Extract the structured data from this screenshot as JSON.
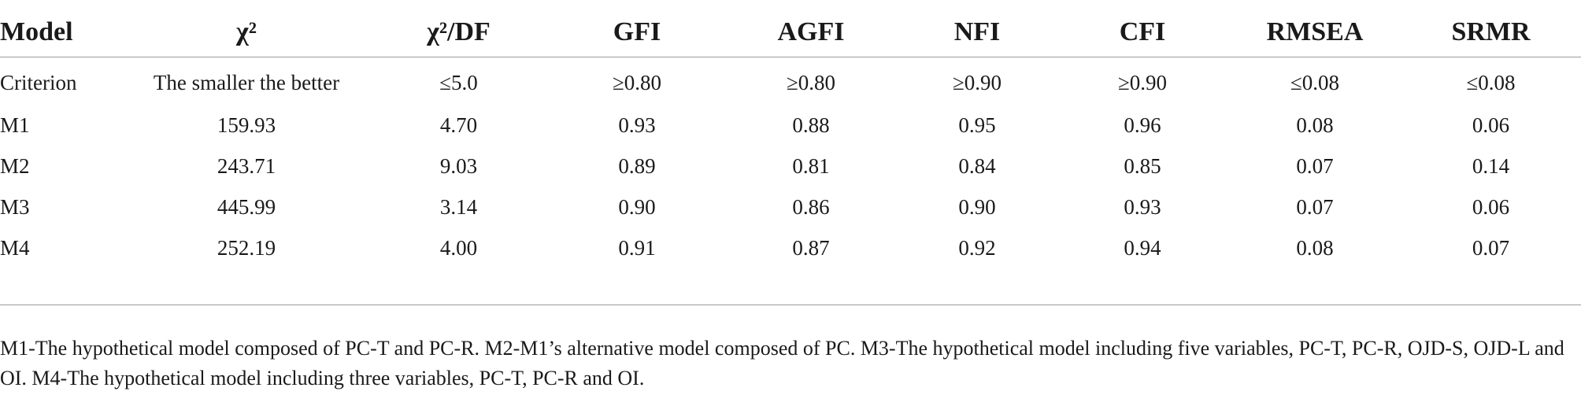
{
  "table": {
    "headers": [
      "Model",
      "χ²",
      "χ²/DF",
      "GFI",
      "AGFI",
      "NFI",
      "CFI",
      "RMSEA",
      "SRMR"
    ],
    "rows": [
      [
        "Criterion",
        "The smaller the better",
        "≤5.0",
        "≥0.80",
        "≥0.80",
        "≥0.90",
        "≥0.90",
        "≤0.08",
        "≤0.08"
      ],
      [
        "M1",
        "159.93",
        "4.70",
        "0.93",
        "0.88",
        "0.95",
        "0.96",
        "0.08",
        "0.06"
      ],
      [
        "M2",
        "243.71",
        "9.03",
        "0.89",
        "0.81",
        "0.84",
        "0.85",
        "0.07",
        "0.14"
      ],
      [
        "M3",
        "445.99",
        "3.14",
        "0.90",
        "0.86",
        "0.90",
        "0.93",
        "0.07",
        "0.06"
      ],
      [
        "M4",
        "252.19",
        "4.00",
        "0.91",
        "0.87",
        "0.92",
        "0.94",
        "0.08",
        "0.07"
      ]
    ]
  },
  "footnote": "M1-The hypothetical model composed of PC-T and PC-R. M2-M1’s alternative model composed of PC. M3-The hypothetical model including five variables, PC-T, PC-R, OJD-S, OJD-L and OI. M4-The hypothetical model including three variables, PC-T, PC-R and OI."
}
